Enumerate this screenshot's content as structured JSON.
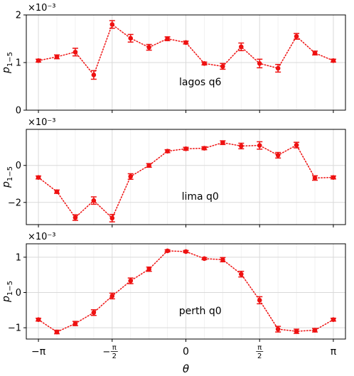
{
  "chart_data": [
    {
      "type": "line",
      "annotation": "lagos q6",
      "ylabel": "p_{1-5}",
      "ylabel_main": "p",
      "ylabel_sub": "1−5",
      "scale_label": "×10⁻³",
      "ylim": [
        0,
        2
      ],
      "yticks": [
        0,
        1,
        2
      ],
      "ytick_labels": [
        "0",
        "1",
        "2"
      ],
      "x": [
        -3.1416,
        -2.7489,
        -2.3562,
        -1.9635,
        -1.5708,
        -1.1781,
        -0.7854,
        -0.3927,
        0.0,
        0.3927,
        0.7854,
        1.1781,
        1.5708,
        1.9635,
        2.3562,
        2.7489,
        3.1416
      ],
      "values": [
        1.04,
        1.12,
        1.22,
        0.74,
        1.8,
        1.51,
        1.32,
        1.5,
        1.42,
        0.98,
        0.92,
        1.33,
        0.98,
        0.88,
        1.55,
        1.2,
        1.04
      ],
      "errors": [
        0.03,
        0.04,
        0.08,
        0.09,
        0.08,
        0.08,
        0.06,
        0.04,
        0.03,
        0.03,
        0.06,
        0.08,
        0.09,
        0.08,
        0.06,
        0.04,
        0.03
      ]
    },
    {
      "type": "line",
      "annotation": "lima q0",
      "ylabel": "p_{1-5}",
      "ylabel_main": "p",
      "ylabel_sub": "1−5",
      "scale_label": "×10⁻³",
      "ylim": [
        -3.2,
        1.95
      ],
      "yticks": [
        -2,
        0
      ],
      "ytick_labels": [
        "−2",
        "0"
      ],
      "x": [
        -3.1416,
        -2.7489,
        -2.3562,
        -1.9635,
        -1.5708,
        -1.1781,
        -0.7854,
        -0.3927,
        0.0,
        0.3927,
        0.7854,
        1.1781,
        1.5708,
        1.9635,
        2.3562,
        2.7489,
        3.1416
      ],
      "values": [
        -0.65,
        -1.42,
        -2.82,
        -1.9,
        -2.85,
        -0.6,
        0.0,
        0.77,
        0.9,
        0.93,
        1.23,
        1.05,
        1.08,
        0.55,
        1.1,
        -0.68,
        -0.65
      ],
      "errors": [
        0.08,
        0.09,
        0.15,
        0.2,
        0.2,
        0.15,
        0.1,
        0.08,
        0.08,
        0.08,
        0.1,
        0.15,
        0.2,
        0.15,
        0.15,
        0.12,
        0.08
      ]
    },
    {
      "type": "line",
      "annotation": "perth q0",
      "ylabel": "p_{1-5}",
      "ylabel_main": "p",
      "ylabel_sub": "1−5",
      "scale_label": "×10⁻³",
      "xlabel": "θ",
      "ylim": [
        -1.32,
        1.38
      ],
      "yticks": [
        -1,
        0,
        1
      ],
      "ytick_labels": [
        "−1",
        "0",
        "1"
      ],
      "x": [
        -3.1416,
        -2.7489,
        -2.3562,
        -1.9635,
        -1.5708,
        -1.1781,
        -0.7854,
        -0.3927,
        0.0,
        0.3927,
        0.7854,
        1.1781,
        1.5708,
        1.9635,
        2.3562,
        2.7489,
        3.1416
      ],
      "values": [
        -0.77,
        -1.12,
        -0.88,
        -0.57,
        -0.1,
        0.33,
        0.66,
        1.18,
        1.16,
        0.96,
        0.93,
        0.52,
        -0.22,
        -1.04,
        -1.1,
        -1.07,
        -0.77
      ],
      "errors": [
        0.04,
        0.05,
        0.06,
        0.08,
        0.08,
        0.08,
        0.06,
        0.03,
        0.03,
        0.03,
        0.06,
        0.08,
        0.1,
        0.08,
        0.06,
        0.05,
        0.04
      ]
    }
  ],
  "x_axis": {
    "xlim": [
      -3.4,
      3.4
    ],
    "ticks": [
      -3.1416,
      -1.5708,
      0,
      1.5708,
      3.1416
    ],
    "minor_ticks": [
      -2.7489,
      -2.3562,
      -1.9635,
      -1.1781,
      -0.7854,
      -0.3927,
      0.3927,
      0.7854,
      1.1781,
      1.9635,
      2.3562,
      2.7489
    ],
    "tick_labels": [
      {
        "kind": "plain",
        "text": "−π"
      },
      {
        "kind": "frac",
        "sign": "−",
        "num": "π",
        "den": "2"
      },
      {
        "kind": "plain",
        "text": "0"
      },
      {
        "kind": "frac",
        "sign": "",
        "num": "π",
        "den": "2"
      },
      {
        "kind": "plain",
        "text": "π"
      }
    ],
    "xlabel": "θ"
  },
  "style": {
    "series_color": "#ee1111",
    "grid": true,
    "grid_color": "#d9d9d9",
    "line_style": "dotted"
  }
}
